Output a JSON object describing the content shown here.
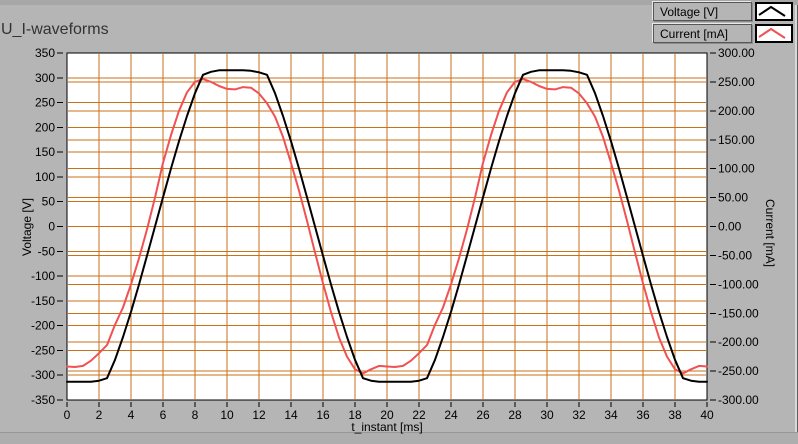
{
  "title": "U_I-waveforms",
  "panel": {
    "background": "#b5b5b5",
    "plot_background": "#ffffff",
    "grid_color": "#c87119",
    "voltage_color": "#000000",
    "current_color": "#f15152"
  },
  "legend": {
    "items": [
      {
        "label": "Voltage [V]",
        "color": "#000000"
      },
      {
        "label": "Current [mA]",
        "color": "#f15152"
      }
    ]
  },
  "chart_data": {
    "type": "line",
    "title": "U_I-waveforms",
    "xlabel": "t_instant [ms]",
    "grid": true,
    "grid_color": "#c87119",
    "legend_position": "top-right",
    "xlim": [
      0,
      40
    ],
    "x_ticks": [
      0,
      2,
      4,
      6,
      8,
      10,
      12,
      14,
      16,
      18,
      20,
      22,
      24,
      26,
      28,
      30,
      32,
      34,
      36,
      38,
      40
    ],
    "left_axis": {
      "label": "Voltage [V]",
      "lim": [
        -350,
        350
      ],
      "tick_step": 50,
      "ticks": [
        350,
        300,
        250,
        200,
        150,
        100,
        50,
        0,
        -50,
        -100,
        -150,
        -200,
        -250,
        -300,
        -350
      ]
    },
    "right_axis": {
      "label": "Current [mA]",
      "lim": [
        -300,
        300
      ],
      "tick_step": 50,
      "ticks": [
        "300.00",
        "250.00",
        "200.00",
        "150.00",
        "100.00",
        "50.00",
        "0.00",
        "-50.00",
        "-100.00",
        "-150.00",
        "-200.00",
        "-250.00",
        "-300.00"
      ]
    },
    "x": [
      0,
      0.5,
      1,
      1.5,
      2,
      2.5,
      3,
      3.5,
      4,
      4.5,
      5,
      5.5,
      6,
      6.5,
      7,
      7.5,
      8,
      8.5,
      9,
      9.5,
      10,
      10.5,
      11,
      11.5,
      12,
      12.5,
      13,
      13.5,
      14,
      14.5,
      15,
      15.5,
      16,
      16.5,
      17,
      17.5,
      18,
      18.5,
      19,
      19.5,
      20,
      20.5,
      21,
      21.5,
      22,
      22.5,
      23,
      23.5,
      24,
      24.5,
      25,
      25.5,
      26,
      26.5,
      27,
      27.5,
      28,
      28.5,
      29,
      29.5,
      30,
      30.5,
      31,
      31.5,
      32,
      32.5,
      33,
      33.5,
      34,
      34.5,
      35,
      35.5,
      36,
      36.5,
      37,
      37.5,
      38,
      38.5,
      39,
      39.5,
      40
    ],
    "series": [
      {
        "name": "Voltage [V]",
        "axis": "left",
        "color": "#000000",
        "values": [
          -313,
          -313,
          -313,
          -313,
          -311,
          -306,
          -269,
          -223,
          -172,
          -117,
          -59,
          0,
          59,
          117,
          172,
          223,
          269,
          306,
          312,
          315,
          315,
          315,
          315,
          314,
          311,
          306,
          269,
          223,
          172,
          117,
          59,
          0,
          -59,
          -117,
          -172,
          -223,
          -269,
          -306,
          -311,
          -313,
          -313,
          -313,
          -313,
          -313,
          -311,
          -306,
          -269,
          -223,
          -172,
          -117,
          -59,
          0,
          59,
          117,
          172,
          223,
          269,
          306,
          312,
          315,
          315,
          315,
          315,
          314,
          311,
          306,
          269,
          223,
          172,
          117,
          59,
          0,
          -59,
          -117,
          -172,
          -223,
          -269,
          -306,
          -311,
          -313,
          -313
        ]
      },
      {
        "name": "Current [mA]",
        "axis": "right",
        "color": "#f15152",
        "values": [
          -242,
          -243,
          -241,
          -232,
          -219,
          -205,
          -170,
          -140,
          -100,
          -55,
          -5,
          50,
          110,
          158,
          200,
          232,
          250,
          255,
          250,
          243,
          238,
          237,
          241,
          240,
          230,
          213,
          190,
          155,
          110,
          62,
          10,
          -45,
          -98,
          -148,
          -192,
          -225,
          -247,
          -254,
          -247,
          -241,
          -242,
          -243,
          -241,
          -232,
          -219,
          -205,
          -170,
          -140,
          -100,
          -55,
          -5,
          50,
          110,
          158,
          200,
          232,
          250,
          255,
          250,
          243,
          238,
          237,
          241,
          240,
          230,
          213,
          190,
          155,
          110,
          62,
          10,
          -45,
          -98,
          -148,
          -192,
          -225,
          -247,
          -254,
          -247,
          -241,
          -242
        ]
      }
    ]
  }
}
